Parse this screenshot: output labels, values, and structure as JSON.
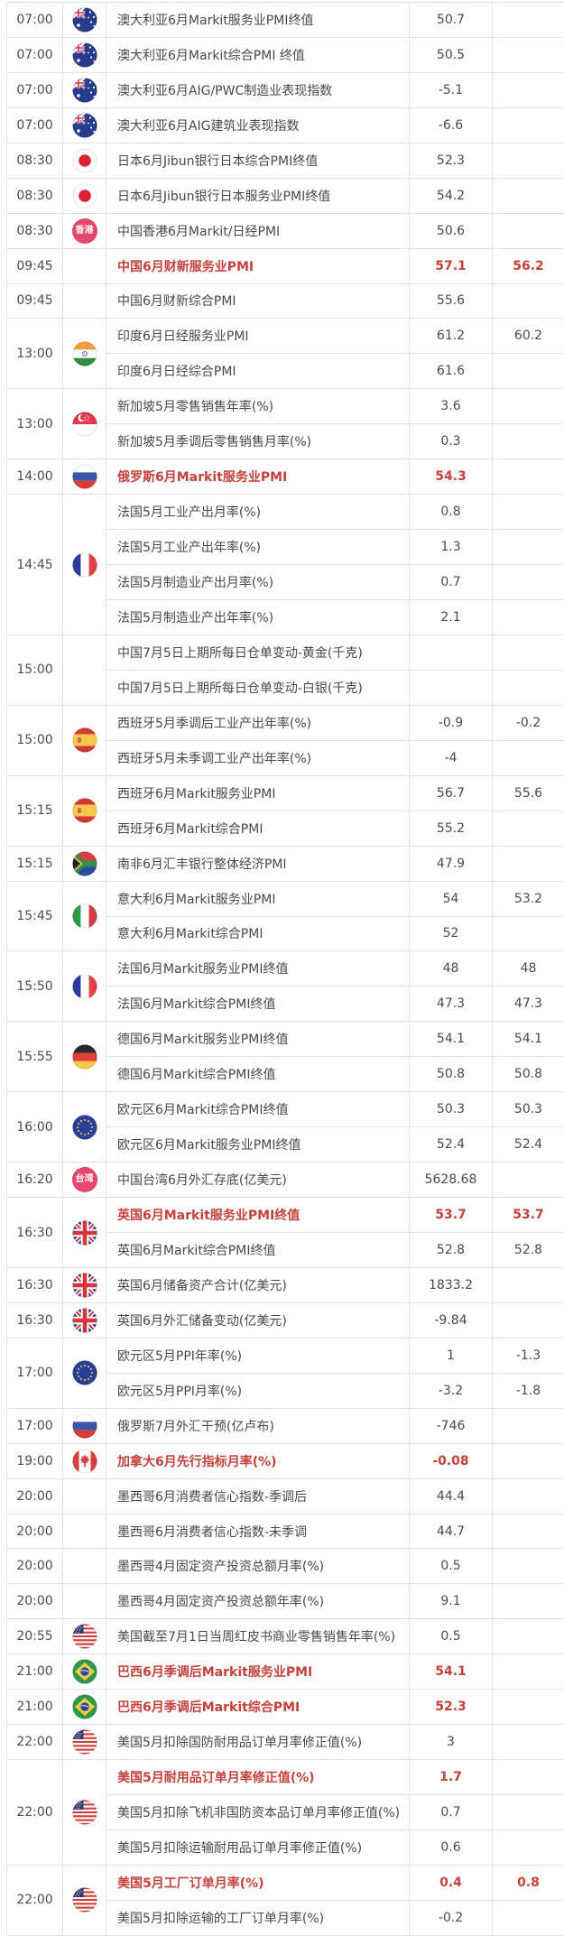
{
  "colors": {
    "accent_red": "#c5423c",
    "grid_line": "#e0e5ea",
    "text": "#4a4a4a",
    "badge_pink": "#e8466c",
    "background": "#ffffff"
  },
  "table": {
    "columns": [
      "time",
      "flag",
      "event",
      "actual",
      "forecast"
    ],
    "groups": [
      {
        "time": "07:00",
        "flag": "au",
        "rows": [
          {
            "event": "澳大利亚6月Markit服务业PMI终值",
            "actual": "50.7",
            "forecast": "",
            "highlight": false
          }
        ]
      },
      {
        "time": "07:00",
        "flag": "au",
        "rows": [
          {
            "event": "澳大利亚6月Markit综合PMI 终值",
            "actual": "50.5",
            "forecast": "",
            "highlight": false
          }
        ]
      },
      {
        "time": "07:00",
        "flag": "au",
        "rows": [
          {
            "event": "澳大利亚6月AIG/PWC制造业表现指数",
            "actual": "-5.1",
            "forecast": "",
            "highlight": false
          }
        ]
      },
      {
        "time": "07:00",
        "flag": "au",
        "rows": [
          {
            "event": "澳大利亚6月AIG建筑业表现指数",
            "actual": "-6.6",
            "forecast": "",
            "highlight": false
          }
        ]
      },
      {
        "time": "08:30",
        "flag": "jp",
        "rows": [
          {
            "event": "日本6月Jibun银行日本综合PMI终值",
            "actual": "52.3",
            "forecast": "",
            "highlight": false
          }
        ]
      },
      {
        "time": "08:30",
        "flag": "jp",
        "rows": [
          {
            "event": "日本6月Jibun银行日本服务业PMI终值",
            "actual": "54.2",
            "forecast": "",
            "highlight": false
          }
        ]
      },
      {
        "time": "08:30",
        "flag": "hk",
        "flag_label": "香港",
        "rows": [
          {
            "event": "中国香港6月Markit/日经PMI",
            "actual": "50.6",
            "forecast": "",
            "highlight": false
          }
        ]
      },
      {
        "time": "09:45",
        "flag": "",
        "rows": [
          {
            "event": "中国6月财新服务业PMI",
            "actual": "57.1",
            "forecast": "56.2",
            "highlight": true
          }
        ]
      },
      {
        "time": "09:45",
        "flag": "",
        "rows": [
          {
            "event": "中国6月财新综合PMI",
            "actual": "55.6",
            "forecast": "",
            "highlight": false
          }
        ]
      },
      {
        "time": "13:00",
        "flag": "in",
        "rows": [
          {
            "event": "印度6月日经服务业PMI",
            "actual": "61.2",
            "forecast": "60.2",
            "highlight": false
          },
          {
            "event": "印度6月日经综合PMI",
            "actual": "61.6",
            "forecast": "",
            "highlight": false
          }
        ]
      },
      {
        "time": "13:00",
        "flag": "sg",
        "rows": [
          {
            "event": "新加坡5月零售销售年率(%)",
            "actual": "3.6",
            "forecast": "",
            "highlight": false
          },
          {
            "event": "新加坡5月季调后零售销售月率(%)",
            "actual": "0.3",
            "forecast": "",
            "highlight": false
          }
        ]
      },
      {
        "time": "14:00",
        "flag": "ru",
        "rows": [
          {
            "event": "俄罗斯6月Markit服务业PMI",
            "actual": "54.3",
            "forecast": "",
            "highlight": true
          }
        ]
      },
      {
        "time": "14:45",
        "flag": "fr",
        "rows": [
          {
            "event": "法国5月工业产出月率(%)",
            "actual": "0.8",
            "forecast": "",
            "highlight": false
          },
          {
            "event": "法国5月工业产出年率(%)",
            "actual": "1.3",
            "forecast": "",
            "highlight": false
          },
          {
            "event": "法国5月制造业产出月率(%)",
            "actual": "0.7",
            "forecast": "",
            "highlight": false
          },
          {
            "event": "法国5月制造业产出年率(%)",
            "actual": "2.1",
            "forecast": "",
            "highlight": false
          }
        ]
      },
      {
        "time": "15:00",
        "flag": "",
        "rows": [
          {
            "event": "中国7月5日上期所每日仓单变动-黄金(千克)",
            "actual": "",
            "forecast": "",
            "highlight": false
          },
          {
            "event": "中国7月5日上期所每日仓单变动-白银(千克)",
            "actual": "",
            "forecast": "",
            "highlight": false
          }
        ]
      },
      {
        "time": "15:00",
        "flag": "es",
        "rows": [
          {
            "event": "西班牙5月季调后工业产出年率(%)",
            "actual": "-0.9",
            "forecast": "-0.2",
            "highlight": false
          },
          {
            "event": "西班牙5月未季调工业产出年率(%)",
            "actual": "-4",
            "forecast": "",
            "highlight": false
          }
        ]
      },
      {
        "time": "15:15",
        "flag": "es",
        "rows": [
          {
            "event": "西班牙6月Markit服务业PMI",
            "actual": "56.7",
            "forecast": "55.6",
            "highlight": false
          },
          {
            "event": "西班牙6月Markit综合PMI",
            "actual": "55.2",
            "forecast": "",
            "highlight": false
          }
        ]
      },
      {
        "time": "15:15",
        "flag": "za",
        "rows": [
          {
            "event": "南非6月汇丰银行整体经济PMI",
            "actual": "47.9",
            "forecast": "",
            "highlight": false
          }
        ]
      },
      {
        "time": "15:45",
        "flag": "it",
        "rows": [
          {
            "event": "意大利6月Markit服务业PMI",
            "actual": "54",
            "forecast": "53.2",
            "highlight": false
          },
          {
            "event": "意大利6月Markit综合PMI",
            "actual": "52",
            "forecast": "",
            "highlight": false
          }
        ]
      },
      {
        "time": "15:50",
        "flag": "fr",
        "rows": [
          {
            "event": "法国6月Markit服务业PMI终值",
            "actual": "48",
            "forecast": "48",
            "highlight": false
          },
          {
            "event": "法国6月Markit综合PMI终值",
            "actual": "47.3",
            "forecast": "47.3",
            "highlight": false
          }
        ]
      },
      {
        "time": "15:55",
        "flag": "de",
        "rows": [
          {
            "event": "德国6月Markit服务业PMI终值",
            "actual": "54.1",
            "forecast": "54.1",
            "highlight": false
          },
          {
            "event": "德国6月Markit综合PMI终值",
            "actual": "50.8",
            "forecast": "50.8",
            "highlight": false
          }
        ]
      },
      {
        "time": "16:00",
        "flag": "eu",
        "rows": [
          {
            "event": "欧元区6月Markit综合PMI终值",
            "actual": "50.3",
            "forecast": "50.3",
            "highlight": false
          },
          {
            "event": "欧元区6月Markit服务业PMI终值",
            "actual": "52.4",
            "forecast": "52.4",
            "highlight": false
          }
        ]
      },
      {
        "time": "16:20",
        "flag": "tw",
        "flag_label": "台湾",
        "rows": [
          {
            "event": "中国台湾6月外汇存底(亿美元)",
            "actual": "5628.68",
            "forecast": "",
            "highlight": false
          }
        ]
      },
      {
        "time": "16:30",
        "flag": "gb",
        "rows": [
          {
            "event": "英国6月Markit服务业PMI终值",
            "actual": "53.7",
            "forecast": "53.7",
            "highlight": true
          },
          {
            "event": "英国6月Markit综合PMI终值",
            "actual": "52.8",
            "forecast": "52.8",
            "highlight": false
          }
        ]
      },
      {
        "time": "16:30",
        "flag": "gb",
        "rows": [
          {
            "event": "英国6月储备资产合计(亿美元)",
            "actual": "1833.2",
            "forecast": "",
            "highlight": false
          }
        ]
      },
      {
        "time": "16:30",
        "flag": "gb",
        "rows": [
          {
            "event": "英国6月外汇储备变动(亿美元)",
            "actual": "-9.84",
            "forecast": "",
            "highlight": false
          }
        ]
      },
      {
        "time": "17:00",
        "flag": "eu",
        "rows": [
          {
            "event": "欧元区5月PPI年率(%)",
            "actual": "1",
            "forecast": "-1.3",
            "highlight": false
          },
          {
            "event": "欧元区5月PPI月率(%)",
            "actual": "-3.2",
            "forecast": "-1.8",
            "highlight": false
          }
        ]
      },
      {
        "time": "17:00",
        "flag": "ru",
        "rows": [
          {
            "event": "俄罗斯7月外汇干预(亿卢布)",
            "actual": "-746",
            "forecast": "",
            "highlight": false
          }
        ]
      },
      {
        "time": "19:00",
        "flag": "ca",
        "rows": [
          {
            "event": "加拿大6月先行指标月率(%)",
            "actual": "-0.08",
            "forecast": "",
            "highlight": true
          }
        ]
      },
      {
        "time": "20:00",
        "flag": "",
        "rows": [
          {
            "event": "墨西哥6月消费者信心指数-季调后",
            "actual": "44.4",
            "forecast": "",
            "highlight": false
          }
        ]
      },
      {
        "time": "20:00",
        "flag": "",
        "rows": [
          {
            "event": "墨西哥6月消费者信心指数-未季调",
            "actual": "44.7",
            "forecast": "",
            "highlight": false
          }
        ]
      },
      {
        "time": "20:00",
        "flag": "",
        "rows": [
          {
            "event": "墨西哥4月固定资产投资总额月率(%)",
            "actual": "0.5",
            "forecast": "",
            "highlight": false
          }
        ]
      },
      {
        "time": "20:00",
        "flag": "",
        "rows": [
          {
            "event": "墨西哥4月固定资产投资总额年率(%)",
            "actual": "9.1",
            "forecast": "",
            "highlight": false
          }
        ]
      },
      {
        "time": "20:55",
        "flag": "us",
        "rows": [
          {
            "event": "美国截至7月1日当周红皮书商业零售销售年率(%)",
            "actual": "0.5",
            "forecast": "",
            "highlight": false
          }
        ]
      },
      {
        "time": "21:00",
        "flag": "br",
        "rows": [
          {
            "event": "巴西6月季调后Markit服务业PMI",
            "actual": "54.1",
            "forecast": "",
            "highlight": true
          }
        ]
      },
      {
        "time": "21:00",
        "flag": "br",
        "rows": [
          {
            "event": "巴西6月季调后Markit综合PMI",
            "actual": "52.3",
            "forecast": "",
            "highlight": true
          }
        ]
      },
      {
        "time": "22:00",
        "flag": "us",
        "rows": [
          {
            "event": "美国5月扣除国防耐用品订单月率修正值(%)",
            "actual": "3",
            "forecast": "",
            "highlight": false
          }
        ]
      },
      {
        "time": "22:00",
        "flag": "us",
        "rows": [
          {
            "event": "美国5月耐用品订单月率修正值(%)",
            "actual": "1.7",
            "forecast": "",
            "highlight": true
          },
          {
            "event": "美国5月扣除飞机非国防资本品订单月率修正值(%)",
            "actual": "0.7",
            "forecast": "",
            "highlight": false
          },
          {
            "event": "美国5月扣除运输耐用品订单月率修正值(%)",
            "actual": "0.6",
            "forecast": "",
            "highlight": false
          }
        ]
      },
      {
        "time": "22:00",
        "flag": "us",
        "rows": [
          {
            "event": "美国5月工厂订单月率(%)",
            "actual": "0.4",
            "forecast": "0.8",
            "highlight": true
          },
          {
            "event": "美国5月扣除运输的工厂订单月率(%)",
            "actual": "-0.2",
            "forecast": "",
            "highlight": false
          }
        ]
      }
    ]
  }
}
